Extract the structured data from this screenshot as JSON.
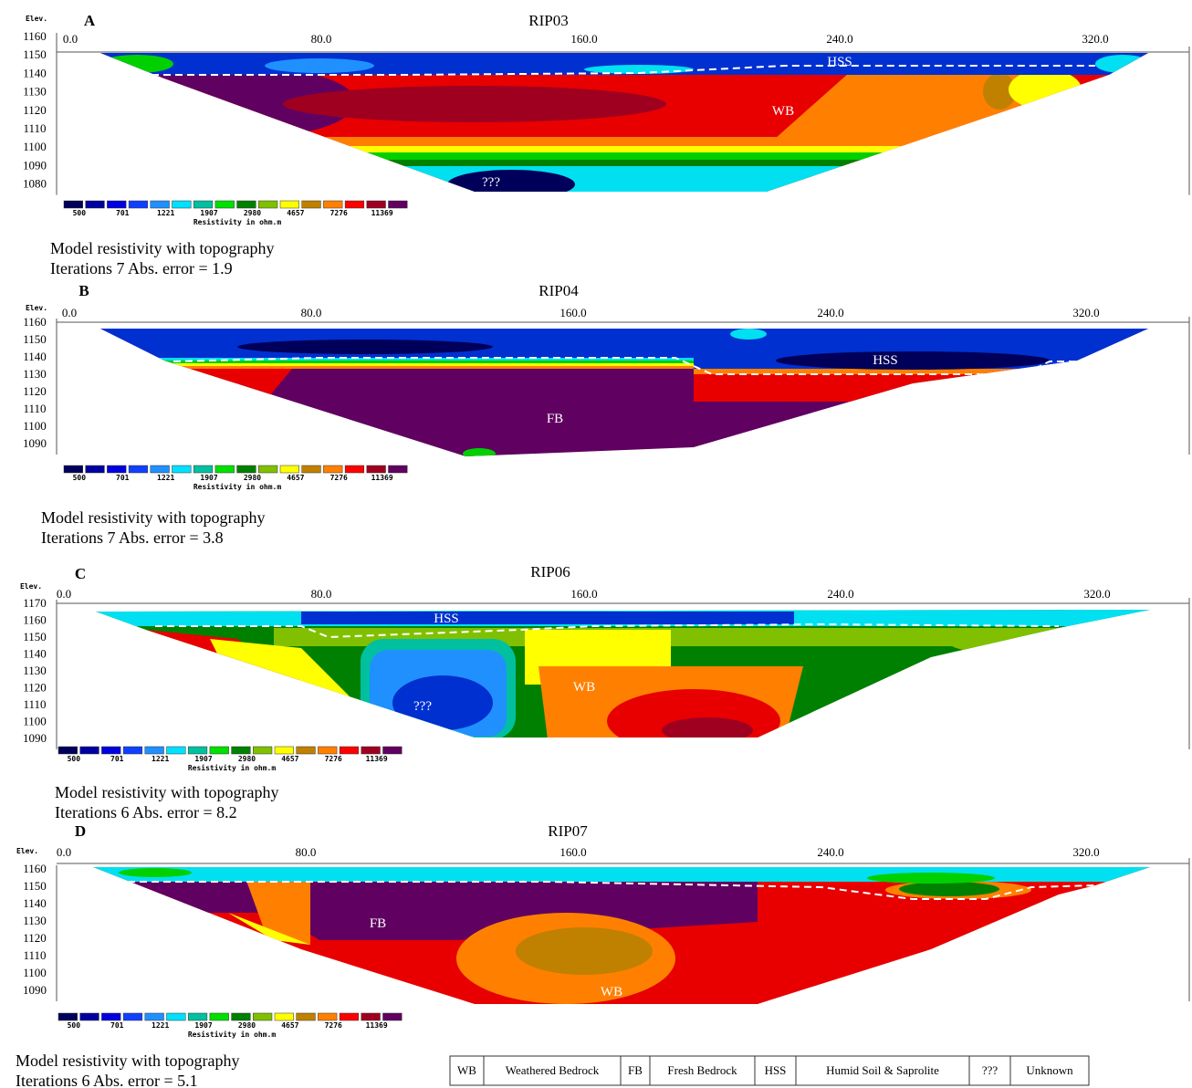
{
  "panels": [
    {
      "letter": "A",
      "title": "RIP03",
      "elev_label": "Elev.",
      "x_ticks": [
        "0.0",
        "80.0",
        "160.0",
        "240.0",
        "320.0"
      ],
      "y_ticks": [
        "1160",
        "1150",
        "1140",
        "1130",
        "1120",
        "1110",
        "1100",
        "1090",
        "1080"
      ],
      "legend_ticks": [
        "500",
        "701",
        "1221",
        "1907",
        "2980",
        "4657",
        "7276",
        "11369"
      ],
      "legend_title": "Resistivity in ohm.m",
      "annotations": [
        "HSS",
        "WB",
        "???"
      ],
      "caption": [
        "Model resistivity with topography",
        "Iterations 7 Abs. error = 1.9"
      ]
    },
    {
      "letter": "B",
      "title": "RIP04",
      "elev_label": "Elev.",
      "x_ticks": [
        "0.0",
        "80.0",
        "160.0",
        "240.0",
        "320.0"
      ],
      "y_ticks": [
        "1160",
        "1150",
        "1140",
        "1130",
        "1120",
        "1110",
        "1100",
        "1090"
      ],
      "legend_ticks": [
        "500",
        "701",
        "1221",
        "1907",
        "2980",
        "4657",
        "7276",
        "11369"
      ],
      "legend_title": "Resistivity in ohm.m",
      "annotations": [
        "HSS",
        "FB"
      ],
      "caption": [
        "Model resistivity with topography",
        "Iterations 7 Abs. error = 3.8"
      ]
    },
    {
      "letter": "C",
      "title": "RIP06",
      "elev_label": "Elev.",
      "x_ticks": [
        "0.0",
        "80.0",
        "160.0",
        "240.0",
        "320.0"
      ],
      "y_ticks": [
        "1170",
        "1160",
        "1150",
        "1140",
        "1130",
        "1120",
        "1110",
        "1100",
        "1090"
      ],
      "legend_ticks": [
        "500",
        "701",
        "1221",
        "1907",
        "2980",
        "4657",
        "7276",
        "11369"
      ],
      "legend_title": "Resistivity in ohm.m",
      "annotations": [
        "HSS",
        "WB",
        "???"
      ],
      "caption": [
        "Model resistivity with topography",
        "Iterations 6 Abs. error = 8.2"
      ]
    },
    {
      "letter": "D",
      "title": "RIP07",
      "elev_label": "Elev.",
      "x_ticks": [
        "0.0",
        "80.0",
        "160.0",
        "240.0",
        "320.0"
      ],
      "y_ticks": [
        "1160",
        "1150",
        "1140",
        "1130",
        "1120",
        "1110",
        "1100",
        "1090"
      ],
      "legend_ticks": [
        "500",
        "701",
        "1221",
        "1907",
        "2980",
        "4657",
        "7276",
        "11369"
      ],
      "legend_title": "Resistivity in ohm.m",
      "annotations": [
        "FB",
        "WB"
      ],
      "caption": [
        "Model resistivity with topography",
        "Iterations 6 Abs. error = 5.1"
      ]
    }
  ],
  "key": [
    [
      "WB",
      "Weathered Bedrock"
    ],
    [
      "FB",
      "Fresh Bedrock"
    ],
    [
      "HSS",
      "Humid Soil & Saprolite"
    ],
    [
      "???",
      "Unknown"
    ]
  ]
}
